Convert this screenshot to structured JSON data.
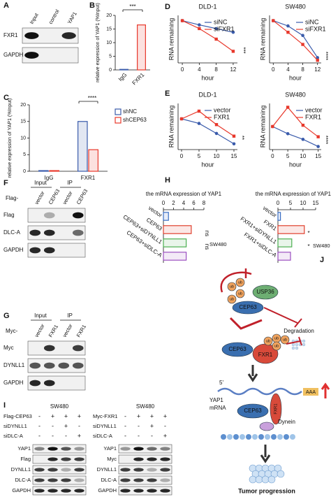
{
  "chart_data": [
    {
      "type": "bar",
      "panel_label": "B",
      "categories": [
        "IgG",
        "FXR1"
      ],
      "values": [
        0.2,
        16.5
      ],
      "colors": [
        "#3a5bab",
        "#e8382b"
      ],
      "ylabel": "relative expression of YAP1 (%Input)",
      "ylim": [
        0,
        20
      ],
      "yticks": [
        0,
        5,
        10,
        15,
        20
      ],
      "annotations": [
        "***"
      ]
    },
    {
      "type": "bar",
      "panel_label": "C",
      "categories": [
        "IgG",
        "FXR1"
      ],
      "series": [
        {
          "name": "shNC",
          "color": "#3a5bab",
          "values": [
            0.2,
            15
          ]
        },
        {
          "name": "shCEP63",
          "color": "#e8382b",
          "values": [
            0.2,
            6.5
          ]
        }
      ],
      "ylabel": "relative expression of YAP1 (%Input)",
      "ylim": [
        0,
        20
      ],
      "yticks": [
        0,
        5,
        10,
        15,
        20
      ],
      "annotations": [
        "****"
      ]
    },
    {
      "type": "line",
      "panel_label": "D",
      "title": "DLD-1",
      "x": [
        0,
        4,
        8,
        12
      ],
      "series": [
        {
          "name": "siNC",
          "color": "#3a5bab",
          "values": [
            1.0,
            0.92,
            0.85,
            0.78
          ]
        },
        {
          "name": "siFXR1",
          "color": "#e8382b",
          "values": [
            1.0,
            0.85,
            0.65,
            0.42
          ]
        }
      ],
      "xlabel": "hour",
      "ylabel": "RNA remaining",
      "xlim": [
        -1,
        13
      ],
      "ylim": [
        0.2,
        1.1
      ],
      "xticks": [
        0,
        4,
        8,
        12
      ],
      "annotations": [
        "***"
      ]
    },
    {
      "type": "line",
      "title": "SW480",
      "x": [
        0,
        4,
        8,
        12
      ],
      "series": [
        {
          "name": "siNC",
          "color": "#3a5bab",
          "values": [
            1.0,
            0.9,
            0.72,
            0.3
          ]
        },
        {
          "name": "siFXR1",
          "color": "#e8382b",
          "values": [
            1.0,
            0.78,
            0.55,
            0.25
          ]
        }
      ],
      "xlabel": "hour",
      "ylabel": "RNA remaining",
      "xlim": [
        -1,
        13
      ],
      "ylim": [
        0.2,
        1.1
      ],
      "xticks": [
        0,
        4,
        8,
        12
      ],
      "annotations": [
        "****"
      ]
    },
    {
      "type": "line",
      "panel_label": "E",
      "title": "DLD-1",
      "x": [
        0,
        5,
        10,
        15
      ],
      "series": [
        {
          "name": "vector",
          "color": "#3a5bab",
          "values": [
            1.0,
            0.88,
            0.62,
            0.35
          ]
        },
        {
          "name": "FXR1",
          "color": "#e8382b",
          "values": [
            1.0,
            1.2,
            0.85,
            0.55
          ]
        }
      ],
      "xlabel": "hour",
      "ylabel": "RNA remaining",
      "xlim": [
        -1,
        16
      ],
      "ylim": [
        0.2,
        1.4
      ],
      "xticks": [
        0,
        5,
        10,
        15
      ],
      "annotations": [
        "**"
      ]
    },
    {
      "type": "line",
      "title": "SW480",
      "x": [
        0,
        5,
        10,
        15
      ],
      "series": [
        {
          "name": "vector",
          "color": "#3a5bab",
          "values": [
            1.0,
            0.72,
            0.5,
            0.22
          ]
        },
        {
          "name": "FXR1",
          "color": "#e8382b",
          "values": [
            1.0,
            1.75,
            1.05,
            0.6
          ]
        }
      ],
      "xlabel": "hour",
      "ylabel": "RNA remaining",
      "xlim": [
        -1,
        16
      ],
      "ylim": [
        0.1,
        1.9
      ],
      "xticks": [
        0,
        5,
        10,
        15
      ],
      "annotations": [
        "****"
      ]
    },
    {
      "type": "barh",
      "panel_label": "H",
      "title": "the mRNA expression of YAP1",
      "categories": [
        "vector",
        "CEP63",
        "CEP63+siDYNLL1",
        "CEP63+siDLC-A"
      ],
      "values": [
        1,
        5.5,
        4.5,
        4.5
      ],
      "colors": [
        "#3b6fc4",
        "#e0402e",
        "#4caf50",
        "#9b4fc0"
      ],
      "xlim": [
        0,
        8
      ],
      "xticks": [
        0,
        2,
        4,
        6,
        8
      ],
      "annotations": [
        "ns",
        "ns"
      ],
      "side_label": "SW480"
    },
    {
      "type": "barh",
      "title": "the mRNA expression of YAP1",
      "categories": [
        "vector",
        "FXR1",
        "FXR1+siDYNLL1",
        "FXR1+siDLC-A"
      ],
      "values": [
        1,
        10.5,
        5.5,
        5
      ],
      "colors": [
        "#3b6fc4",
        "#e0402e",
        "#4caf50",
        "#9b4fc0"
      ],
      "xlim": [
        0,
        15
      ],
      "xticks": [
        0,
        5,
        10,
        15
      ],
      "annotations": [
        "*",
        "*"
      ],
      "side_label": "SW480"
    }
  ],
  "blots": {
    "A": {
      "label": "A",
      "lanes": [
        "Input",
        "control",
        "YAP1"
      ],
      "rows": [
        "FXR1",
        "GAPDH"
      ]
    },
    "F": {
      "label": "F",
      "prefix": "Flag-",
      "groups": [
        "Input",
        "IP"
      ],
      "lanes": [
        "vector",
        "CEP63",
        "vector",
        "CEP63"
      ],
      "rows": [
        "Flag",
        "DLC-A",
        "GAPDH"
      ]
    },
    "G": {
      "label": "G",
      "prefix": "Myc-",
      "groups": [
        "Input",
        "IP"
      ],
      "lanes": [
        "vector",
        "FXR1",
        "vector",
        "FXR1"
      ],
      "rows": [
        "Myc",
        "DYNLL1",
        "GAPDH"
      ]
    },
    "I": {
      "label": "I",
      "panels": [
        {
          "cell_line": "SW480",
          "conditions": [
            {
              "name": "Flag-CEP63",
              "signs": [
                "-",
                "+",
                "+",
                "+"
              ]
            },
            {
              "name": "siDYNLL1",
              "signs": [
                "-",
                "-",
                "+",
                "-"
              ]
            },
            {
              "name": "siDLC-A",
              "signs": [
                "-",
                "-",
                "-",
                "+"
              ]
            }
          ],
          "rows": [
            "YAP1",
            "Flag",
            "DYNLL1",
            "DLC-A",
            "GAPDH"
          ]
        },
        {
          "cell_line": "SW480",
          "conditions": [
            {
              "name": "Myc-FXR1",
              "signs": [
                "-",
                "+",
                "+",
                "+"
              ]
            },
            {
              "name": "siDYNLL1",
              "signs": [
                "-",
                "-",
                "+",
                "-"
              ]
            },
            {
              "name": "siDLC-A",
              "signs": [
                "-",
                "-",
                "-",
                "+"
              ]
            }
          ],
          "rows": [
            "YAP1",
            "Myc",
            "DYNLL1",
            "DLC-A",
            "GAPDH"
          ]
        }
      ]
    }
  },
  "diagram": {
    "label": "J",
    "nodes": {
      "ub": "ub",
      "usp36": "USP36",
      "cep63_top": "CEP63",
      "degradation": "Degradation",
      "cep63_mid": "CEP63",
      "fxr1_mid": "FXR1",
      "five_prime": "5'",
      "polyA": "AAA",
      "yap1": "YAP1",
      "mrna": "mRNA",
      "cep63_bottom": "CEP63",
      "fxr1_bottom": "FXR1",
      "dynein": "Dynein",
      "outcome": "Tumor progression"
    }
  }
}
